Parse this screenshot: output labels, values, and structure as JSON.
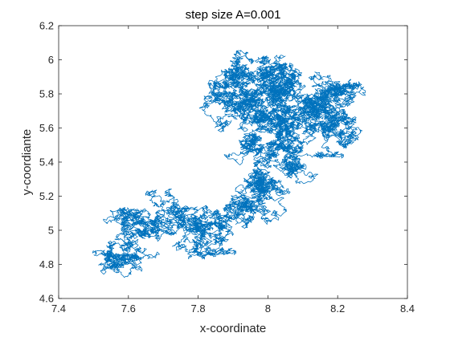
{
  "chart_data": {
    "type": "line",
    "title": "step size A=0.001",
    "xlabel": "x-coordinate",
    "ylabel": "y-coordiante",
    "xlim": [
      7.4,
      8.4
    ],
    "ylim": [
      4.6,
      6.2
    ],
    "xticks": [
      "7.4",
      "7.6",
      "7.8",
      "8",
      "8.2",
      "8.4"
    ],
    "yticks": [
      "4.6",
      "4.8",
      "5",
      "5.2",
      "5.4",
      "5.6",
      "5.8",
      "6",
      "6.2"
    ],
    "grid": false,
    "series": [
      {
        "color": "#0072BD",
        "walk_anchors": [
          [
            7.53,
            4.8
          ],
          [
            7.57,
            4.84
          ],
          [
            7.54,
            4.87
          ],
          [
            7.58,
            4.86
          ],
          [
            7.62,
            4.92
          ],
          [
            7.61,
            4.96
          ],
          [
            7.66,
            4.98
          ],
          [
            7.63,
            5.04
          ],
          [
            7.69,
            5.08
          ],
          [
            7.72,
            5.12
          ],
          [
            7.76,
            5.1
          ],
          [
            7.74,
            5.05
          ],
          [
            7.8,
            5.02
          ],
          [
            7.82,
            4.98
          ],
          [
            7.86,
            5.03
          ],
          [
            7.84,
            4.92
          ],
          [
            7.87,
            4.96
          ],
          [
            7.92,
            5.1
          ],
          [
            7.93,
            5.16
          ],
          [
            7.99,
            5.2
          ],
          [
            7.98,
            5.14
          ],
          [
            8.03,
            5.24
          ],
          [
            8.02,
            5.28
          ],
          [
            7.94,
            5.3
          ],
          [
            7.98,
            5.35
          ],
          [
            8.05,
            5.38
          ],
          [
            8.06,
            5.45
          ],
          [
            8.04,
            5.5
          ],
          [
            7.97,
            5.48
          ],
          [
            7.95,
            5.55
          ],
          [
            8.0,
            5.58
          ],
          [
            8.08,
            5.55
          ],
          [
            8.05,
            5.6
          ],
          [
            8.12,
            5.58
          ],
          [
            8.17,
            5.54
          ],
          [
            8.22,
            5.56
          ],
          [
            8.24,
            5.6
          ],
          [
            8.19,
            5.66
          ],
          [
            8.14,
            5.68
          ],
          [
            8.08,
            5.64
          ],
          [
            8.1,
            5.7
          ],
          [
            8.16,
            5.76
          ],
          [
            8.22,
            5.8
          ],
          [
            8.24,
            5.85
          ],
          [
            8.18,
            5.84
          ],
          [
            8.14,
            5.82
          ],
          [
            8.09,
            5.79
          ],
          [
            8.06,
            5.84
          ],
          [
            8.08,
            5.9
          ],
          [
            8.04,
            5.96
          ],
          [
            7.99,
            5.99
          ],
          [
            7.93,
            5.97
          ],
          [
            7.96,
            5.92
          ],
          [
            7.9,
            5.9
          ],
          [
            7.84,
            5.88
          ],
          [
            7.88,
            5.82
          ],
          [
            7.94,
            5.78
          ],
          [
            7.98,
            5.73
          ],
          [
            7.93,
            5.7
          ],
          [
            7.88,
            5.74
          ],
          [
            7.9,
            5.66
          ],
          [
            7.97,
            5.63
          ],
          [
            8.01,
            5.67
          ],
          [
            8.06,
            5.72
          ],
          [
            8.02,
            5.76
          ],
          [
            7.97,
            5.81
          ],
          [
            8.01,
            5.86
          ],
          [
            8.06,
            5.81
          ],
          [
            8.12,
            5.74
          ],
          [
            8.17,
            5.69
          ],
          [
            8.2,
            5.63
          ]
        ]
      }
    ]
  }
}
